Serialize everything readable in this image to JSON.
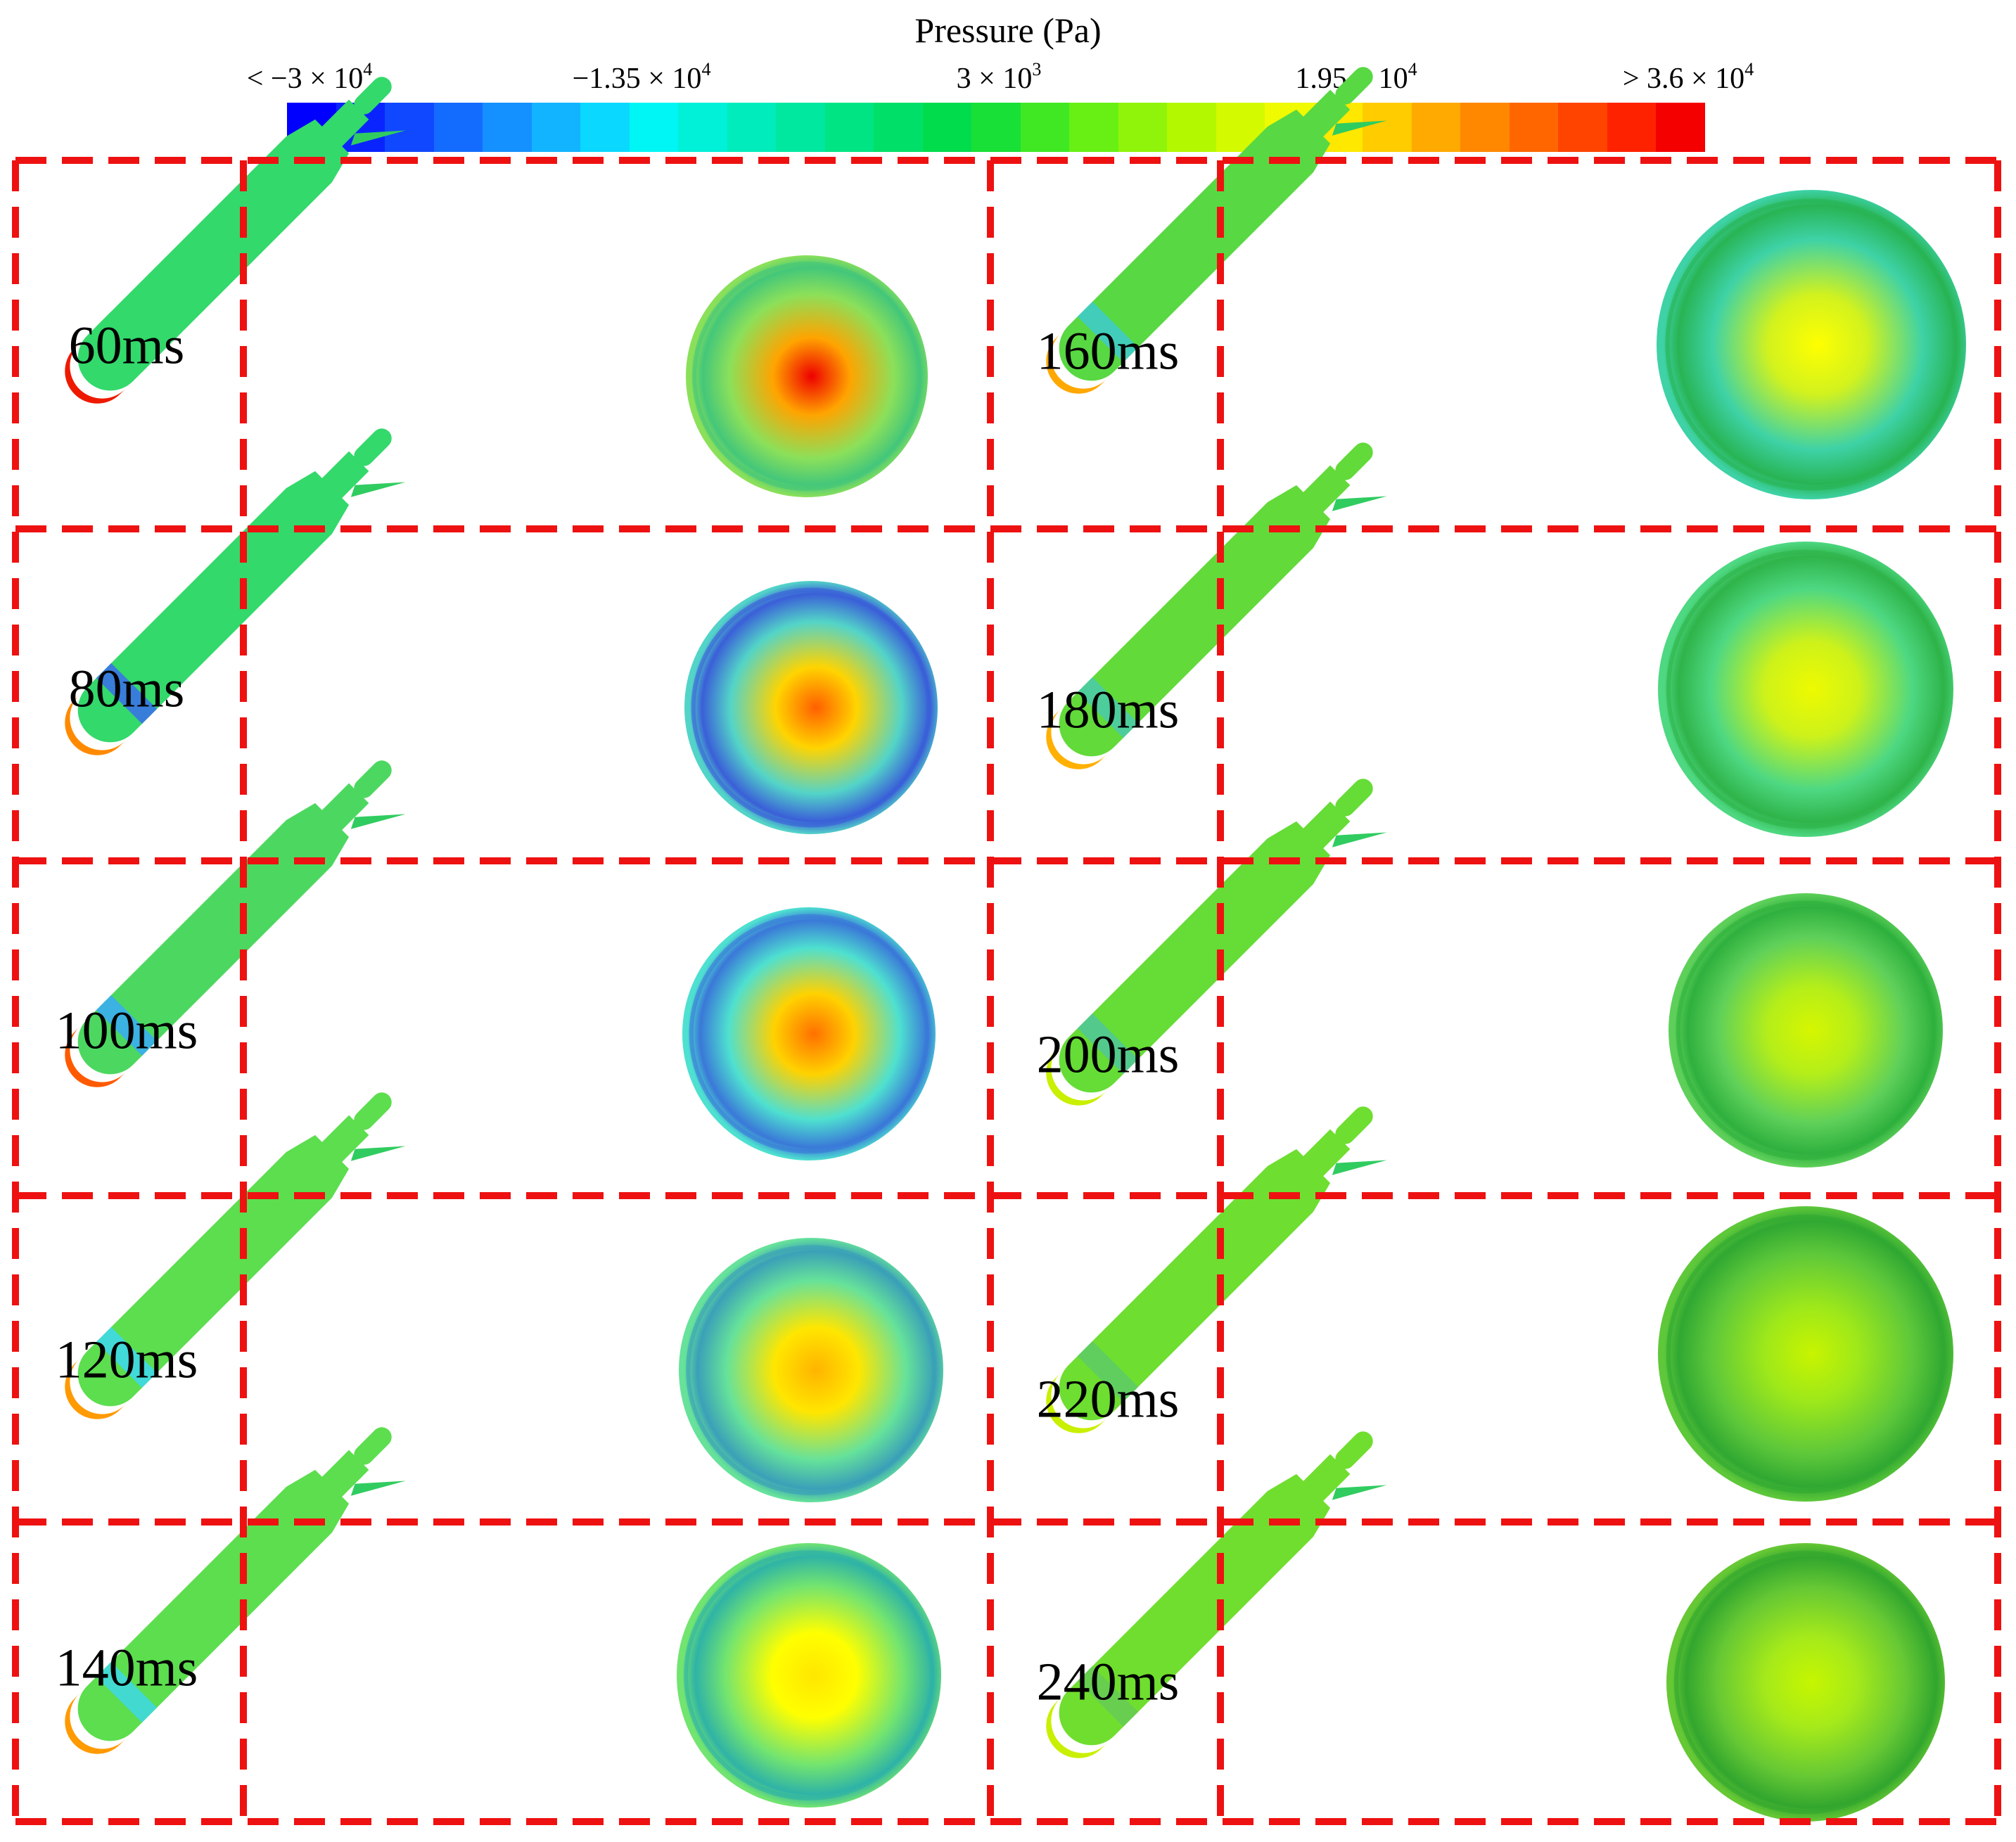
{
  "colorbar": {
    "title": "Pressure (Pa)",
    "ticks": [
      {
        "prefix": "< −3 × 10",
        "exp": "4"
      },
      {
        "prefix": "−1.35 × 10",
        "exp": "4"
      },
      {
        "prefix": "3 × 10",
        "exp": "3"
      },
      {
        "prefix": "1.95 × 10",
        "exp": "4"
      },
      {
        "prefix": "> 3.6 × 10",
        "exp": "4"
      }
    ],
    "colors": [
      "#0000ff",
      "#0a24ff",
      "#1048ff",
      "#146cff",
      "#1590ff",
      "#12b4ff",
      "#0ad8ff",
      "#00f5f5",
      "#00f0d8",
      "#00ecbc",
      "#00e8a0",
      "#00e484",
      "#00e068",
      "#00dc4c",
      "#18e036",
      "#40e824",
      "#68f014",
      "#90f40a",
      "#b4f800",
      "#d4fa00",
      "#f0fa00",
      "#ffe800",
      "#ffcc00",
      "#ffaa00",
      "#ff8800",
      "#ff6600",
      "#ff4400",
      "#ff2200",
      "#f40000"
    ]
  },
  "left_times": [
    "60ms",
    "80ms",
    "100ms",
    "120ms",
    "140ms"
  ],
  "right_times": [
    "160ms",
    "180ms",
    "200ms",
    "220ms",
    "240ms"
  ],
  "left_spheres": [
    [
      "#44c77a",
      "#8be05a",
      "#ffa400",
      "#ee0000"
    ],
    [
      "#3a5fd8",
      "#53d4c8",
      "#ffd400",
      "#ff5f00"
    ],
    [
      "#3a78d8",
      "#4ee0d0",
      "#ffd200",
      "#ff7000"
    ],
    [
      "#3aa0b8",
      "#66e29a",
      "#ffe600",
      "#ffb400"
    ],
    [
      "#2fb3a6",
      "#72e470",
      "#ffff00",
      "#ffe600"
    ]
  ],
  "right_spheres": [
    [
      "#28b454",
      "#3ed2a6",
      "#d2f21e",
      "#ffff00"
    ],
    [
      "#2fb44a",
      "#4ed882",
      "#cdf21a",
      "#eefa00"
    ],
    [
      "#2fb03e",
      "#5ed05a",
      "#b4ee1a",
      "#d6f600"
    ],
    [
      "#30a832",
      "#5ec83a",
      "#9ee81a",
      "#c8f400"
    ],
    [
      "#32a62e",
      "#66c834",
      "#a6ea1a",
      "#c6f600"
    ]
  ],
  "left_bodies": [
    {
      "body": "#33d96b",
      "band": "#33d96b",
      "tip": "#ee1a00"
    },
    {
      "body": "#33d96b",
      "band": "#3a78e0",
      "tip": "#ff8a00"
    },
    {
      "body": "#4cd860",
      "band": "#3ab0e8",
      "tip": "#ff5a00"
    },
    {
      "body": "#5cde4e",
      "band": "#40d8e0",
      "tip": "#ff9a00"
    },
    {
      "body": "#5cde4e",
      "band": "#40d8d8",
      "tip": "#ff9a00"
    }
  ],
  "right_bodies": [
    {
      "body": "#58d842",
      "band": "#40ccc0",
      "tip": "#ffa800"
    },
    {
      "body": "#62da3a",
      "band": "#4ccca0",
      "tip": "#ffb000"
    },
    {
      "body": "#66dc36",
      "band": "#52c890",
      "tip": "#c8f000"
    },
    {
      "body": "#6ede30",
      "band": "#5ecc62",
      "tip": "#c8f000"
    },
    {
      "body": "#70de2e",
      "band": "#66cc52",
      "tip": "#c8f000"
    }
  ],
  "frame_color": "#ee1111"
}
